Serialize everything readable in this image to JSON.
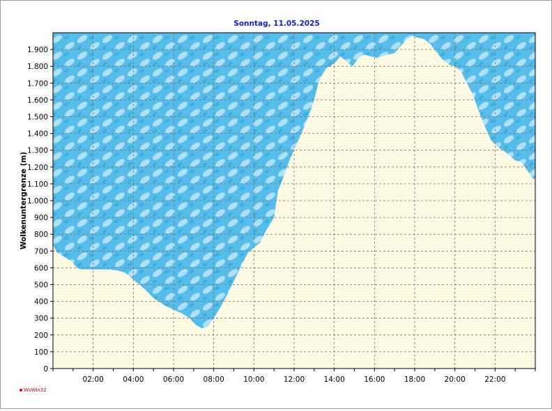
{
  "chart_data": {
    "type": "area",
    "title": "Sonntag, 11.05.2025",
    "ylabel": "Wolkenuntergrenze (m)",
    "xlabel": "",
    "ylim": [
      0,
      2000
    ],
    "xlim_hours": [
      0,
      24
    ],
    "grid": true,
    "yticks": [
      0,
      100,
      200,
      300,
      400,
      500,
      600,
      700,
      800,
      900,
      1000,
      1100,
      1200,
      1300,
      1400,
      1500,
      1600,
      1700,
      1800,
      1900
    ],
    "ytick_labels": [
      "0",
      "100",
      "200",
      "300",
      "400",
      "500",
      "600",
      "700",
      "800",
      "900",
      "1.000",
      "1.100",
      "1.200",
      "1.300",
      "1.400",
      "1.500",
      "1.600",
      "1.700",
      "1.800",
      "1.900"
    ],
    "xticks_hours": [
      2,
      4,
      6,
      8,
      10,
      12,
      14,
      16,
      18,
      20,
      22
    ],
    "xtick_labels": [
      "02:00",
      "04:00",
      "06:00",
      "08:00",
      "10:00",
      "12:00",
      "14:00",
      "16:00",
      "18:00",
      "20:00",
      "22:00"
    ],
    "series": [
      {
        "x_hours": [
          0,
          0.2,
          0.5,
          0.9,
          1.2,
          1.4,
          2.0,
          2.6,
          3.2,
          3.6,
          4.0,
          4.5,
          5.0,
          5.5,
          6.0,
          6.4,
          6.8,
          7.1,
          7.4,
          7.7,
          8.0,
          8.5,
          9.0,
          9.4,
          9.7,
          10.0,
          10.3,
          10.6,
          11.0,
          11.2,
          11.5,
          11.8,
          12.1,
          12.4,
          12.7,
          13.0,
          13.2,
          13.4,
          13.6,
          13.8,
          14.1,
          14.3,
          14.6,
          14.9,
          15.2,
          15.5,
          15.8,
          16.1,
          16.4,
          16.7,
          17.0,
          17.3,
          17.6,
          17.9,
          18.2,
          18.5,
          18.8,
          19.1,
          19.4,
          19.7,
          20.0,
          20.3,
          20.6,
          20.9,
          21.2,
          21.5,
          21.8,
          22.1,
          22.4,
          22.7,
          23.0,
          23.3,
          23.6,
          23.9
        ],
        "values": [
          740,
          690,
          670,
          640,
          600,
          590,
          590,
          590,
          585,
          570,
          530,
          480,
          420,
          380,
          350,
          330,
          300,
          260,
          240,
          250,
          300,
          400,
          520,
          620,
          690,
          720,
          750,
          820,
          900,
          1060,
          1150,
          1250,
          1330,
          1410,
          1500,
          1600,
          1700,
          1750,
          1790,
          1800,
          1830,
          1860,
          1830,
          1800,
          1850,
          1870,
          1860,
          1850,
          1860,
          1870,
          1880,
          1920,
          1960,
          1980,
          1970,
          1960,
          1930,
          1880,
          1840,
          1810,
          1800,
          1770,
          1700,
          1630,
          1530,
          1440,
          1360,
          1320,
          1300,
          1270,
          1240,
          1230,
          1180,
          1130
        ]
      }
    ]
  },
  "footer": {
    "credit": "WsWin32"
  },
  "colors": {
    "cloud": "#4fb9e8",
    "cloud_light": "#bfe6f8",
    "clear_area": "#fffbe4",
    "title": "#1020c0",
    "grid": "#707070"
  }
}
